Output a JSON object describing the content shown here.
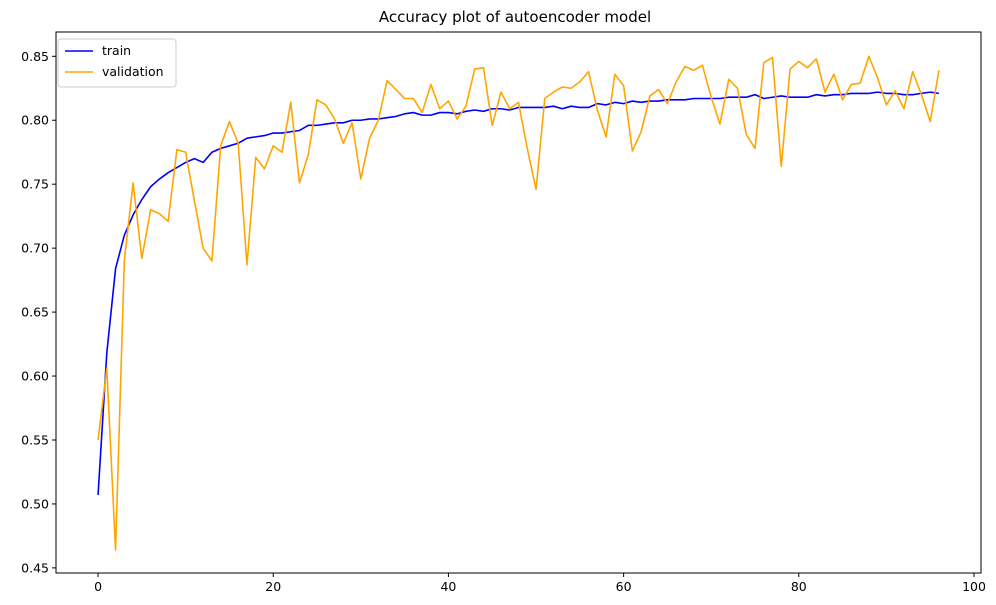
{
  "chart_data": {
    "type": "line",
    "title": "Accuracy plot of autoencoder model",
    "xlabel": "",
    "ylabel": "",
    "xlim": [
      -4.8,
      100.8
    ],
    "ylim": [
      0.446,
      0.869
    ],
    "xticks": [
      0,
      20,
      40,
      60,
      80,
      100
    ],
    "yticks": [
      0.45,
      0.5,
      0.55,
      0.6,
      0.65,
      0.7,
      0.75,
      0.8,
      0.85
    ],
    "grid": false,
    "legend_position": "top-left",
    "series": [
      {
        "name": "train",
        "color": "#0000ff",
        "values": [
          0.507,
          0.618,
          0.684,
          0.71,
          0.726,
          0.738,
          0.748,
          0.754,
          0.759,
          0.763,
          0.767,
          0.77,
          0.767,
          0.775,
          0.778,
          0.78,
          0.782,
          0.786,
          0.787,
          0.788,
          0.79,
          0.79,
          0.791,
          0.792,
          0.796,
          0.796,
          0.797,
          0.798,
          0.798,
          0.8,
          0.8,
          0.801,
          0.801,
          0.802,
          0.803,
          0.805,
          0.806,
          0.804,
          0.804,
          0.806,
          0.806,
          0.805,
          0.807,
          0.808,
          0.807,
          0.809,
          0.809,
          0.808,
          0.81,
          0.81,
          0.81,
          0.81,
          0.811,
          0.809,
          0.811,
          0.81,
          0.81,
          0.813,
          0.812,
          0.814,
          0.813,
          0.815,
          0.814,
          0.815,
          0.815,
          0.816,
          0.816,
          0.816,
          0.817,
          0.817,
          0.817,
          0.817,
          0.818,
          0.818,
          0.818,
          0.82,
          0.817,
          0.818,
          0.819,
          0.818,
          0.818,
          0.818,
          0.82,
          0.819,
          0.82,
          0.82,
          0.821,
          0.821,
          0.821,
          0.822,
          0.821,
          0.821,
          0.82,
          0.82,
          0.821,
          0.822,
          0.821
        ]
      },
      {
        "name": "validation",
        "color": "#ffa500",
        "values": [
          0.55,
          0.606,
          0.464,
          0.69,
          0.751,
          0.692,
          0.73,
          0.727,
          0.721,
          0.777,
          0.775,
          0.737,
          0.7,
          0.69,
          0.78,
          0.799,
          0.782,
          0.687,
          0.771,
          0.762,
          0.78,
          0.775,
          0.814,
          0.751,
          0.773,
          0.816,
          0.812,
          0.801,
          0.782,
          0.798,
          0.754,
          0.786,
          0.8,
          0.831,
          0.824,
          0.817,
          0.817,
          0.806,
          0.828,
          0.809,
          0.815,
          0.801,
          0.811,
          0.84,
          0.841,
          0.796,
          0.822,
          0.809,
          0.814,
          0.778,
          0.746,
          0.817,
          0.822,
          0.826,
          0.825,
          0.83,
          0.838,
          0.808,
          0.787,
          0.836,
          0.827,
          0.776,
          0.791,
          0.819,
          0.824,
          0.813,
          0.83,
          0.842,
          0.839,
          0.843,
          0.818,
          0.797,
          0.832,
          0.825,
          0.789,
          0.778,
          0.845,
          0.849,
          0.764,
          0.84,
          0.846,
          0.841,
          0.848,
          0.822,
          0.836,
          0.816,
          0.828,
          0.829,
          0.85,
          0.833,
          0.812,
          0.823,
          0.809,
          0.838,
          0.82,
          0.799,
          0.839
        ]
      }
    ]
  }
}
